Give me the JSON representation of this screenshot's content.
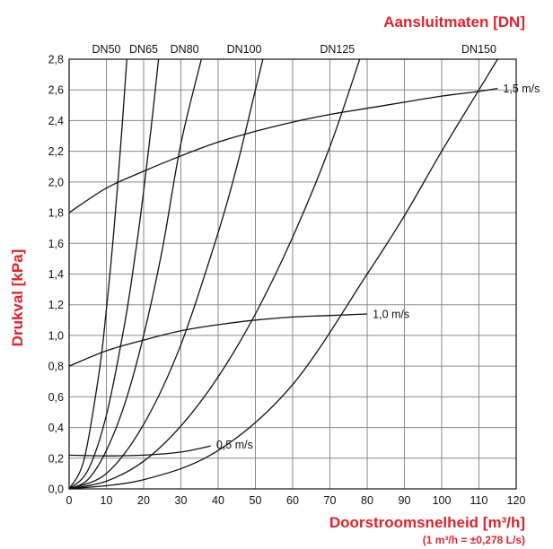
{
  "chart_data": {
    "type": "line",
    "title": "Aansluitmaten [DN]",
    "xlabel": "Doorstroomsnelheid [m³/h]",
    "xlabel_note": "(1 m³/h = ±0,278 L/s)",
    "ylabel": "Drukval [kPa]",
    "xlim": [
      0,
      120
    ],
    "ylim": [
      0,
      2.8
    ],
    "grid": true,
    "x_ticks": [
      "0",
      "10",
      "20",
      "30",
      "40",
      "50",
      "60",
      "70",
      "80",
      "90",
      "100",
      "110",
      "120"
    ],
    "y_ticks": [
      "0,0",
      "0,2",
      "0,4",
      "0,6",
      "0,8",
      "1,0",
      "1,2",
      "1,4",
      "1,6",
      "1,8",
      "2,0",
      "2,2",
      "2,4",
      "2,6",
      "2,8"
    ],
    "series": [
      {
        "name": "DN50",
        "x": [
          0,
          4,
          8,
          10,
          12,
          14,
          15.5
        ],
        "y": [
          0,
          0.19,
          0.75,
          1.17,
          1.68,
          2.29,
          2.8
        ]
      },
      {
        "name": "DN65",
        "x": [
          0,
          5,
          10,
          15,
          18,
          20,
          22,
          24
        ],
        "y": [
          0,
          0.12,
          0.48,
          1.09,
          1.57,
          1.94,
          2.35,
          2.8
        ]
      },
      {
        "name": "DN80",
        "x": [
          0,
          5,
          10,
          15,
          20,
          25,
          30,
          35.5
        ],
        "y": [
          0,
          0.06,
          0.25,
          0.56,
          1.0,
          1.56,
          2.25,
          2.8
        ]
      },
      {
        "name": "DN100",
        "x": [
          0,
          10,
          20,
          30,
          40,
          45,
          50,
          52
        ],
        "y": [
          0,
          0.1,
          0.42,
          0.94,
          1.67,
          2.1,
          2.6,
          2.8
        ]
      },
      {
        "name": "DN125",
        "x": [
          0,
          10,
          20,
          30,
          40,
          50,
          60,
          70,
          78
        ],
        "y": [
          0,
          0.05,
          0.18,
          0.41,
          0.73,
          1.14,
          1.64,
          2.23,
          2.8
        ]
      },
      {
        "name": "DN150",
        "x": [
          0,
          20,
          40,
          60,
          80,
          90,
          100,
          110,
          115
        ],
        "y": [
          0,
          0.06,
          0.25,
          0.68,
          1.4,
          1.78,
          2.2,
          2.6,
          2.8
        ]
      },
      {
        "name": "0,5 m/s",
        "x": [
          0,
          10,
          20,
          30,
          38
        ],
        "y": [
          0.22,
          0.215,
          0.22,
          0.24,
          0.28
        ]
      },
      {
        "name": "1,0 m/s",
        "x": [
          0,
          10,
          20,
          30,
          40,
          50,
          60,
          70,
          80
        ],
        "y": [
          0.8,
          0.9,
          0.97,
          1.03,
          1.07,
          1.1,
          1.12,
          1.13,
          1.14
        ]
      },
      {
        "name": "1,5 m/s",
        "x": [
          0,
          10,
          20,
          30,
          40,
          50,
          60,
          70,
          80,
          90,
          100,
          110,
          115
        ],
        "y": [
          1.8,
          1.96,
          2.07,
          2.17,
          2.26,
          2.33,
          2.39,
          2.44,
          2.48,
          2.52,
          2.56,
          2.59,
          2.61
        ]
      }
    ],
    "dn_labels": [
      {
        "text": "DN50",
        "x": 10
      },
      {
        "text": "DN65",
        "x": 20
      },
      {
        "text": "DN80",
        "x": 31
      },
      {
        "text": "DN100",
        "x": 47
      },
      {
        "text": "DN125",
        "x": 72
      },
      {
        "text": "DN150",
        "x": 110
      }
    ],
    "velocity_labels": [
      {
        "text": "0,5 m/s",
        "x": 39,
        "y": 0.29
      },
      {
        "text": "1,0 m/s",
        "x": 81,
        "y": 1.14
      },
      {
        "text": "1,5 m/s",
        "x": 116,
        "y": 2.61
      }
    ],
    "colors": {
      "accent": "#e4202a",
      "line": "#111111",
      "grid": "#8a8a8a"
    }
  }
}
